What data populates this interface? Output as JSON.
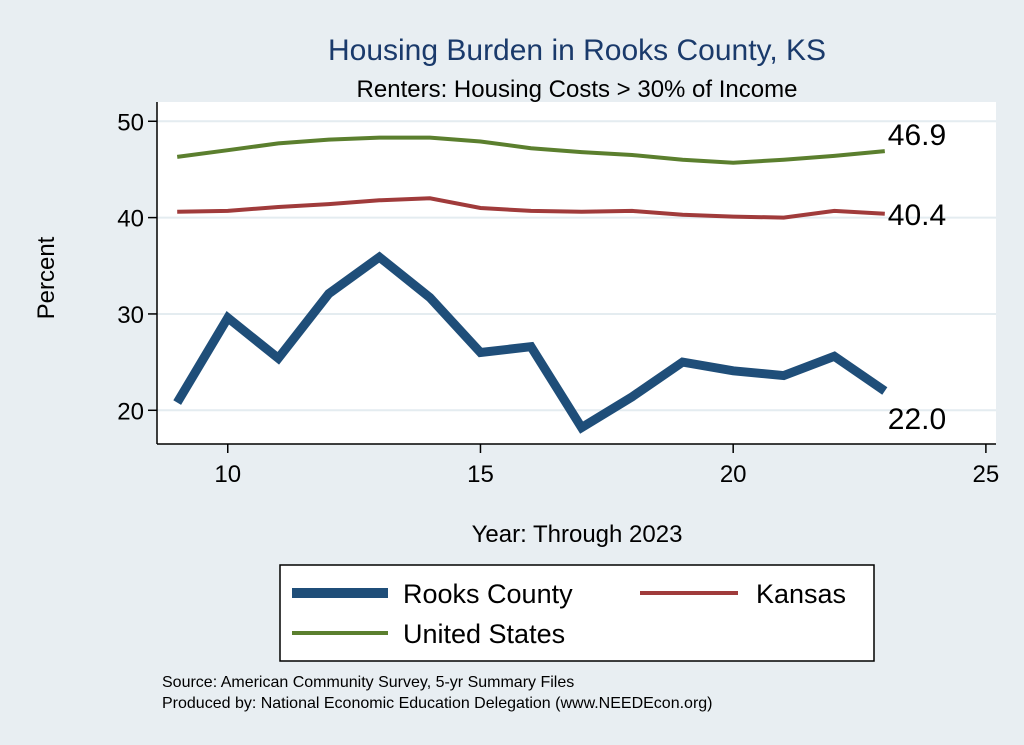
{
  "colors": {
    "background": "#e8eef2",
    "plot_background": "#ffffff",
    "grid": "#e4ecf0",
    "rooks": "#1f4e79",
    "kansas": "#a03b3b",
    "us": "#5b7f2e"
  },
  "chart_data": {
    "type": "line",
    "title": "Housing Burden in Rooks County, KS",
    "subtitle": "Renters: Housing Costs > 30% of Income",
    "xlabel": "Year: Through 2023",
    "ylabel": "Percent",
    "xlim": [
      8.6,
      25.2
    ],
    "ylim": [
      16.5,
      52
    ],
    "xticks": [
      10,
      15,
      20,
      25
    ],
    "yticks": [
      20,
      30,
      40,
      50
    ],
    "grid": true,
    "x": [
      9,
      10,
      11,
      12,
      13,
      14,
      15,
      16,
      17,
      18,
      19,
      20,
      21,
      22,
      23
    ],
    "series": [
      {
        "key": "rooks",
        "name": "Rooks County",
        "values": [
          20.8,
          29.6,
          25.4,
          32.1,
          35.9,
          31.7,
          26.0,
          26.6,
          18.2,
          21.4,
          25.0,
          24.1,
          23.6,
          25.6,
          22.0
        ],
        "end_label": "22.0"
      },
      {
        "key": "kansas",
        "name": "Kansas",
        "values": [
          40.6,
          40.7,
          41.1,
          41.4,
          41.8,
          42.0,
          41.0,
          40.7,
          40.6,
          40.7,
          40.3,
          40.1,
          40.0,
          40.7,
          40.4
        ],
        "end_label": "40.4"
      },
      {
        "key": "us",
        "name": "United States",
        "values": [
          46.3,
          47.0,
          47.7,
          48.1,
          48.3,
          48.3,
          47.9,
          47.2,
          46.8,
          46.5,
          46.0,
          45.7,
          46.0,
          46.4,
          46.9
        ],
        "end_label": "46.9"
      }
    ],
    "legend_position": "bottom"
  },
  "source_lines": [
    "Source: American Community Survey, 5-yr Summary Files",
    "Produced by: National Economic Education Delegation (www.NEEDEcon.org)"
  ]
}
